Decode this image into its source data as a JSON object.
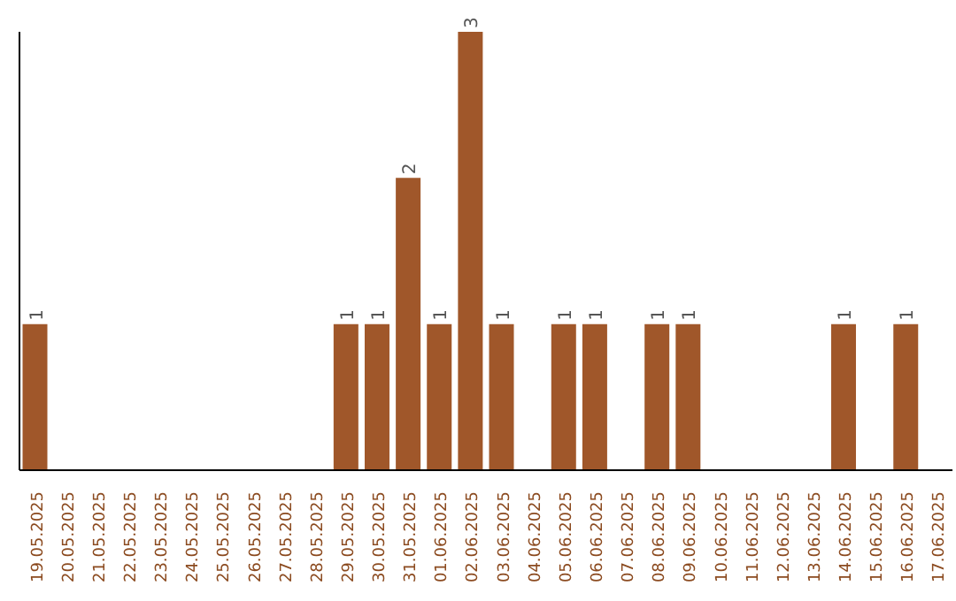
{
  "chart_data": {
    "type": "bar",
    "categories": [
      "19.05.2025",
      "20.05.2025",
      "21.05.2025",
      "22.05.2025",
      "23.05.2025",
      "24.05.2025",
      "25.05.2025",
      "26.05.2025",
      "27.05.2025",
      "28.05.2025",
      "29.05.2025",
      "30.05.2025",
      "31.05.2025",
      "01.06.2025",
      "02.06.2025",
      "03.06.2025",
      "04.06.2025",
      "05.06.2025",
      "06.06.2025",
      "07.06.2025",
      "08.06.2025",
      "09.06.2025",
      "10.06.2025",
      "11.06.2025",
      "12.06.2025",
      "13.06.2025",
      "14.06.2025",
      "15.06.2025",
      "16.06.2025",
      "17.06.2025"
    ],
    "values": [
      1,
      null,
      null,
      null,
      null,
      null,
      null,
      null,
      null,
      null,
      1,
      1,
      2,
      1,
      3,
      1,
      null,
      1,
      1,
      null,
      1,
      1,
      null,
      null,
      null,
      null,
      1,
      null,
      1,
      null
    ],
    "color": "#a0572a",
    "data_labels": true,
    "tick_labels": "x"
  }
}
